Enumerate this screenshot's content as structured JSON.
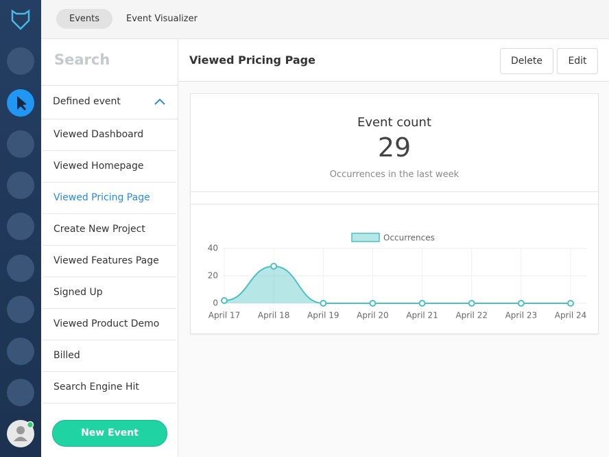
{
  "nav": {
    "tabs": [
      "Events",
      "Event Visualizer"
    ],
    "active_tab": 0
  },
  "sidebar": {
    "search_placeholder": "Search",
    "section": "Defined event",
    "events": [
      "Viewed Dashboard",
      "Viewed Homepage",
      "Viewed Pricing Page",
      "Create New Project",
      "Viewed Features Page",
      "Signed Up",
      "Viewed Product Demo",
      "Billed",
      "Search Engine Hit"
    ],
    "selected": 2,
    "button": "New Event"
  },
  "header": {
    "title": "Viewed Pricing Page",
    "actions": [
      "Delete",
      "Edit"
    ]
  },
  "stat": {
    "label": "Event count",
    "value": 29,
    "caption": "Occurrences in the last week"
  },
  "chart_data": {
    "type": "line",
    "area": true,
    "grid": true,
    "categories": [
      "April 17",
      "April 18",
      "April 19",
      "April 20",
      "April 21",
      "April 22",
      "April 23",
      "April 24"
    ],
    "series": [
      {
        "name": "Occurrences",
        "color": "#4bc0c0",
        "values": [
          2,
          27,
          0,
          0,
          0,
          0,
          0,
          0
        ]
      }
    ],
    "ylim": [
      0,
      40
    ],
    "yticks": [
      0,
      20,
      40
    ]
  }
}
